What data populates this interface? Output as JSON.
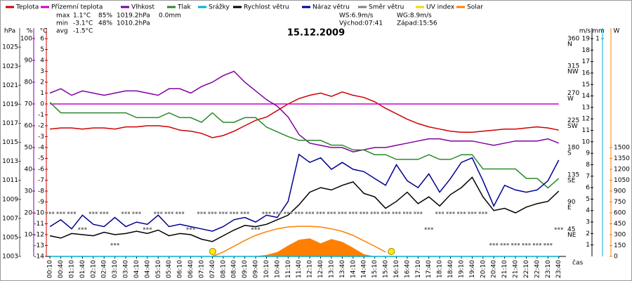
{
  "chart_data": {
    "type": "line",
    "title": "15.12.2009",
    "x_label": "čas",
    "stats": [
      [
        "max",
        "1.1°C",
        "85%",
        "1019.2hPa",
        "0.0mm"
      ],
      [
        "min",
        "-3.1°C",
        "48%",
        "1010.2hPa"
      ],
      [
        "avg",
        "-1.5°C"
      ]
    ],
    "wind_stats": [
      "WS:6.9m/s",
      "WG:8.9m/s"
    ],
    "sun": [
      "Východ:07:41",
      "Západ:15:56"
    ],
    "sun_markers": [
      461,
      956
    ],
    "x": [
      10,
      40,
      70,
      100,
      130,
      160,
      190,
      220,
      250,
      280,
      310,
      340,
      370,
      400,
      430,
      460,
      490,
      520,
      550,
      580,
      610,
      640,
      670,
      700,
      730,
      760,
      790,
      820,
      850,
      880,
      910,
      940,
      970,
      1000,
      1030,
      1060,
      1090,
      1120,
      1150,
      1180,
      1210,
      1240,
      1270,
      1300,
      1330,
      1360,
      1390,
      1420
    ],
    "xlim": [
      0,
      1440
    ],
    "xticks": [
      {
        "value": 10,
        "label": "00:10"
      },
      {
        "value": 40,
        "label": "00:40"
      },
      {
        "value": 70,
        "label": "01:10"
      },
      {
        "value": 100,
        "label": "01:40"
      },
      {
        "value": 130,
        "label": "02:10"
      },
      {
        "value": 160,
        "label": "02:40"
      },
      {
        "value": 190,
        "label": "03:10"
      },
      {
        "value": 220,
        "label": "03:40"
      },
      {
        "value": 250,
        "label": "04:10"
      },
      {
        "value": 280,
        "label": "04:40"
      },
      {
        "value": 310,
        "label": "05:10"
      },
      {
        "value": 340,
        "label": "05:40"
      },
      {
        "value": 370,
        "label": "06:10"
      },
      {
        "value": 400,
        "label": "06:40"
      },
      {
        "value": 430,
        "label": "07:10"
      },
      {
        "value": 460,
        "label": "07:40"
      },
      {
        "value": 490,
        "label": "08:10"
      },
      {
        "value": 520,
        "label": "08:40"
      },
      {
        "value": 550,
        "label": "09:10"
      },
      {
        "value": 580,
        "label": "09:40"
      },
      {
        "value": 610,
        "label": "10:10"
      },
      {
        "value": 640,
        "label": "10:40"
      },
      {
        "value": 670,
        "label": "11:10"
      },
      {
        "value": 700,
        "label": "11:40"
      },
      {
        "value": 730,
        "label": "12:10"
      },
      {
        "value": 760,
        "label": "12:40"
      },
      {
        "value": 790,
        "label": "13:10"
      },
      {
        "value": 820,
        "label": "13:40"
      },
      {
        "value": 850,
        "label": "14:10"
      },
      {
        "value": 880,
        "label": "14:40"
      },
      {
        "value": 910,
        "label": "15:10"
      },
      {
        "value": 940,
        "label": "15:40"
      },
      {
        "value": 970,
        "label": "16:10"
      },
      {
        "value": 1000,
        "label": "16:40"
      },
      {
        "value": 1030,
        "label": "17:10"
      },
      {
        "value": 1060,
        "label": "17:40"
      },
      {
        "value": 1090,
        "label": "18:10"
      },
      {
        "value": 1120,
        "label": "18:40"
      },
      {
        "value": 1150,
        "label": "19:10"
      },
      {
        "value": 1180,
        "label": "19:40"
      },
      {
        "value": 1210,
        "label": "20:10"
      },
      {
        "value": 1240,
        "label": "20:40"
      },
      {
        "value": 1270,
        "label": "21:10"
      },
      {
        "value": 1300,
        "label": "21:40"
      },
      {
        "value": 1330,
        "label": "22:10"
      },
      {
        "value": 1360,
        "label": "22:40"
      },
      {
        "value": 1390,
        "label": "23:10"
      },
      {
        "value": 1420,
        "label": "23:40"
      }
    ],
    "axes": [
      {
        "unit": "hPa",
        "color": "#555555",
        "lim": [
          1003,
          1025.9
        ],
        "ticks": [
          1003,
          1005,
          1007,
          1009,
          1011,
          1013,
          1015,
          1017,
          1019,
          1021,
          1023,
          1025
        ]
      },
      {
        "unit": "%",
        "color": "#8000a0",
        "lim": [
          0,
          100
        ],
        "ticks": [
          10,
          20,
          30,
          40,
          50,
          60,
          70,
          80,
          90,
          100
        ]
      },
      {
        "unit": "°C",
        "color": "#d00000",
        "lim": [
          -14,
          6
        ],
        "ticks": [
          -14,
          -13,
          -12,
          -11,
          -10,
          -9,
          -8,
          -7,
          -6,
          -5,
          -4,
          -3,
          -2,
          -1,
          0,
          1,
          2,
          3,
          4,
          5,
          6
        ]
      },
      {
        "color": "#555555",
        "lim": [
          0,
          360
        ],
        "ticks": [
          45,
          90,
          135,
          180,
          225,
          270,
          315,
          360
        ],
        "compass": [
          "NE",
          "E",
          "SE",
          "S",
          "SW",
          "W",
          "NW",
          "N"
        ]
      },
      {
        "unit": "m/s",
        "color": "#000000",
        "lim": [
          0,
          19
        ],
        "ticks": [
          1,
          2,
          3,
          4,
          5,
          6,
          7,
          8,
          9,
          10,
          11,
          12,
          13,
          14,
          15,
          16,
          17,
          18,
          19
        ]
      },
      {
        "unit": "mm",
        "color": "#00b0d0",
        "lim": [
          0,
          1
        ],
        "ticks": [
          1
        ]
      },
      {
        "unit": "W",
        "color": "#ff8000",
        "lim": [
          0,
          3000
        ],
        "ticks": [
          0,
          150,
          300,
          450,
          600,
          750,
          900,
          1050,
          1200,
          1350,
          1500
        ]
      }
    ],
    "solar_envelope": [
      null,
      null,
      null,
      null,
      null,
      null,
      null,
      null,
      null,
      null,
      null,
      null,
      null,
      null,
      null,
      0,
      60,
      140,
      220,
      290,
      340,
      380,
      405,
      415,
      415,
      405,
      380,
      345,
      290,
      215,
      140,
      60,
      null,
      null,
      null,
      null,
      null,
      null,
      null,
      null,
      null,
      null,
      null,
      null,
      null,
      null,
      null,
      null
    ],
    "series": [
      {
        "name": "Teplota",
        "color": "#d00000",
        "axis": 2,
        "style": "line",
        "values": [
          -2.3,
          -2.2,
          -2.2,
          -2.3,
          -2.2,
          -2.2,
          -2.3,
          -2.1,
          -2.1,
          -2.0,
          -2.0,
          -2.1,
          -2.4,
          -2.5,
          -2.7,
          -3.1,
          -2.9,
          -2.5,
          -2.0,
          -1.5,
          -1.2,
          -0.6,
          0.0,
          0.5,
          0.8,
          1.0,
          0.7,
          1.1,
          0.8,
          0.6,
          0.2,
          -0.4,
          -0.9,
          -1.4,
          -1.8,
          -2.1,
          -2.3,
          -2.5,
          -2.6,
          -2.6,
          -2.5,
          -2.4,
          -2.3,
          -2.3,
          -2.2,
          -2.1,
          -2.2,
          -2.4
        ]
      },
      {
        "name": "Přízemní teplota",
        "color": "#cc00cc",
        "axis": 2,
        "style": "line",
        "values": [
          0,
          0,
          0,
          0,
          0,
          0,
          0,
          0,
          0,
          0,
          0,
          0,
          0,
          0,
          0,
          0,
          0,
          0,
          0,
          0,
          0,
          0,
          0,
          0,
          0,
          0,
          0,
          0,
          0,
          0,
          0,
          0,
          0,
          0,
          0,
          0,
          0,
          0,
          0,
          0,
          0,
          0,
          0,
          0,
          0,
          0,
          0,
          0
        ]
      },
      {
        "name": "Vlhkost",
        "color": "#8000a0",
        "axis": 1,
        "style": "line",
        "values": [
          75,
          77,
          74,
          76,
          75,
          74,
          75,
          76,
          76,
          75,
          74,
          77,
          77,
          75,
          78,
          80,
          83,
          85,
          80,
          76,
          72,
          69,
          64,
          56,
          52,
          51,
          50,
          50,
          48,
          49,
          50,
          50,
          51,
          52,
          53,
          54,
          54,
          53,
          53,
          53,
          52,
          51,
          52,
          53,
          53,
          53,
          54,
          52
        ]
      },
      {
        "name": "Tlak",
        "color": "#2a8a2a",
        "axis": 0,
        "style": "line",
        "values": [
          1019.2,
          1018.1,
          1018.1,
          1018.1,
          1018.1,
          1018.1,
          1018.1,
          1018.1,
          1017.6,
          1017.6,
          1017.6,
          1018.1,
          1017.6,
          1017.6,
          1017.1,
          1018.1,
          1017.1,
          1017.1,
          1017.6,
          1017.6,
          1016.6,
          1016.1,
          1015.6,
          1015.2,
          1015.2,
          1015.2,
          1014.7,
          1014.7,
          1014.2,
          1014.2,
          1013.7,
          1013.7,
          1013.2,
          1013.2,
          1013.2,
          1013.7,
          1013.2,
          1013.2,
          1013.7,
          1013.7,
          1012.2,
          1012.2,
          1012.2,
          1012.2,
          1011.2,
          1011.2,
          1010.2,
          1011.2
        ]
      },
      {
        "name": "Srážky",
        "color": "#00b0d0",
        "axis": 5,
        "style": "line",
        "values": [
          0,
          0,
          0,
          0,
          0,
          0,
          0,
          0,
          0,
          0,
          0,
          0,
          0,
          0,
          0,
          0,
          0,
          0,
          0,
          0,
          0,
          0,
          0,
          0,
          0,
          0,
          0,
          0,
          0,
          0,
          0,
          0,
          0,
          0,
          0,
          0,
          0,
          0,
          0,
          0,
          0,
          0,
          0,
          0,
          0,
          0,
          0,
          0
        ]
      },
      {
        "name": "Rychlost větru",
        "color": "#000000",
        "axis": 4,
        "style": "line",
        "values": [
          1.8,
          1.6,
          2.0,
          1.9,
          1.8,
          2.1,
          1.9,
          2.0,
          2.2,
          2.0,
          2.3,
          1.8,
          2.0,
          1.9,
          1.5,
          1.3,
          1.8,
          2.3,
          2.7,
          2.6,
          2.8,
          3.2,
          3.6,
          4.5,
          5.6,
          6.0,
          5.8,
          6.2,
          6.5,
          5.5,
          5.2,
          4.2,
          4.8,
          5.6,
          4.6,
          5.2,
          4.4,
          5.4,
          6.0,
          6.9,
          5.2,
          4.0,
          4.2,
          3.8,
          4.3,
          4.6,
          4.8,
          5.7
        ]
      },
      {
        "name": "Náraz větru",
        "color": "#000090",
        "axis": 4,
        "style": "line",
        "values": [
          2.6,
          3.2,
          2.4,
          3.6,
          2.8,
          2.6,
          3.4,
          2.6,
          3.0,
          2.8,
          3.6,
          2.6,
          2.8,
          2.6,
          2.4,
          2.2,
          2.6,
          3.2,
          3.4,
          3.0,
          3.6,
          3.4,
          4.8,
          8.9,
          8.2,
          8.6,
          7.6,
          8.2,
          7.6,
          7.4,
          6.8,
          6.2,
          8.0,
          6.6,
          6.0,
          7.2,
          5.6,
          6.8,
          8.2,
          8.6,
          6.6,
          4.4,
          6.2,
          5.8,
          5.6,
          5.8,
          6.6,
          8.4
        ]
      },
      {
        "name": "Směr větru",
        "color": "#808080",
        "axis": 3,
        "style": "markers",
        "values": [
          72,
          72,
          72,
          46,
          72,
          72,
          20,
          72,
          72,
          46,
          72,
          72,
          72,
          46,
          72,
          72,
          72,
          72,
          72,
          46,
          72,
          72,
          72,
          72,
          72,
          72,
          72,
          72,
          72,
          72,
          72,
          72,
          72,
          72,
          72,
          46,
          72,
          72,
          72,
          72,
          72,
          20,
          20,
          20,
          20,
          20,
          20,
          46
        ]
      },
      {
        "name": "UV index",
        "color": "#ffd400",
        "axis": 6,
        "style": "line",
        "values": [
          null,
          null,
          null,
          null,
          null,
          null,
          null,
          null,
          null,
          null,
          null,
          null,
          null,
          null,
          null,
          null,
          null,
          null,
          null,
          null,
          null,
          null,
          null,
          null,
          null,
          null,
          null,
          null,
          null,
          null,
          null,
          null,
          null,
          null,
          null,
          null,
          null,
          null,
          null,
          null,
          null,
          null,
          null,
          null,
          null,
          null,
          null,
          null
        ]
      },
      {
        "name": "Solar",
        "color": "#ff8000",
        "axis": 6,
        "style": "area",
        "values": [
          0,
          0,
          0,
          0,
          0,
          0,
          0,
          0,
          0,
          0,
          0,
          0,
          0,
          0,
          0,
          0,
          0,
          0,
          0,
          5,
          20,
          60,
          150,
          230,
          250,
          180,
          240,
          200,
          120,
          30,
          0,
          0,
          0,
          0,
          0,
          0,
          0,
          0,
          0,
          0,
          0,
          0,
          0,
          0,
          0,
          0,
          0,
          0
        ]
      }
    ]
  }
}
